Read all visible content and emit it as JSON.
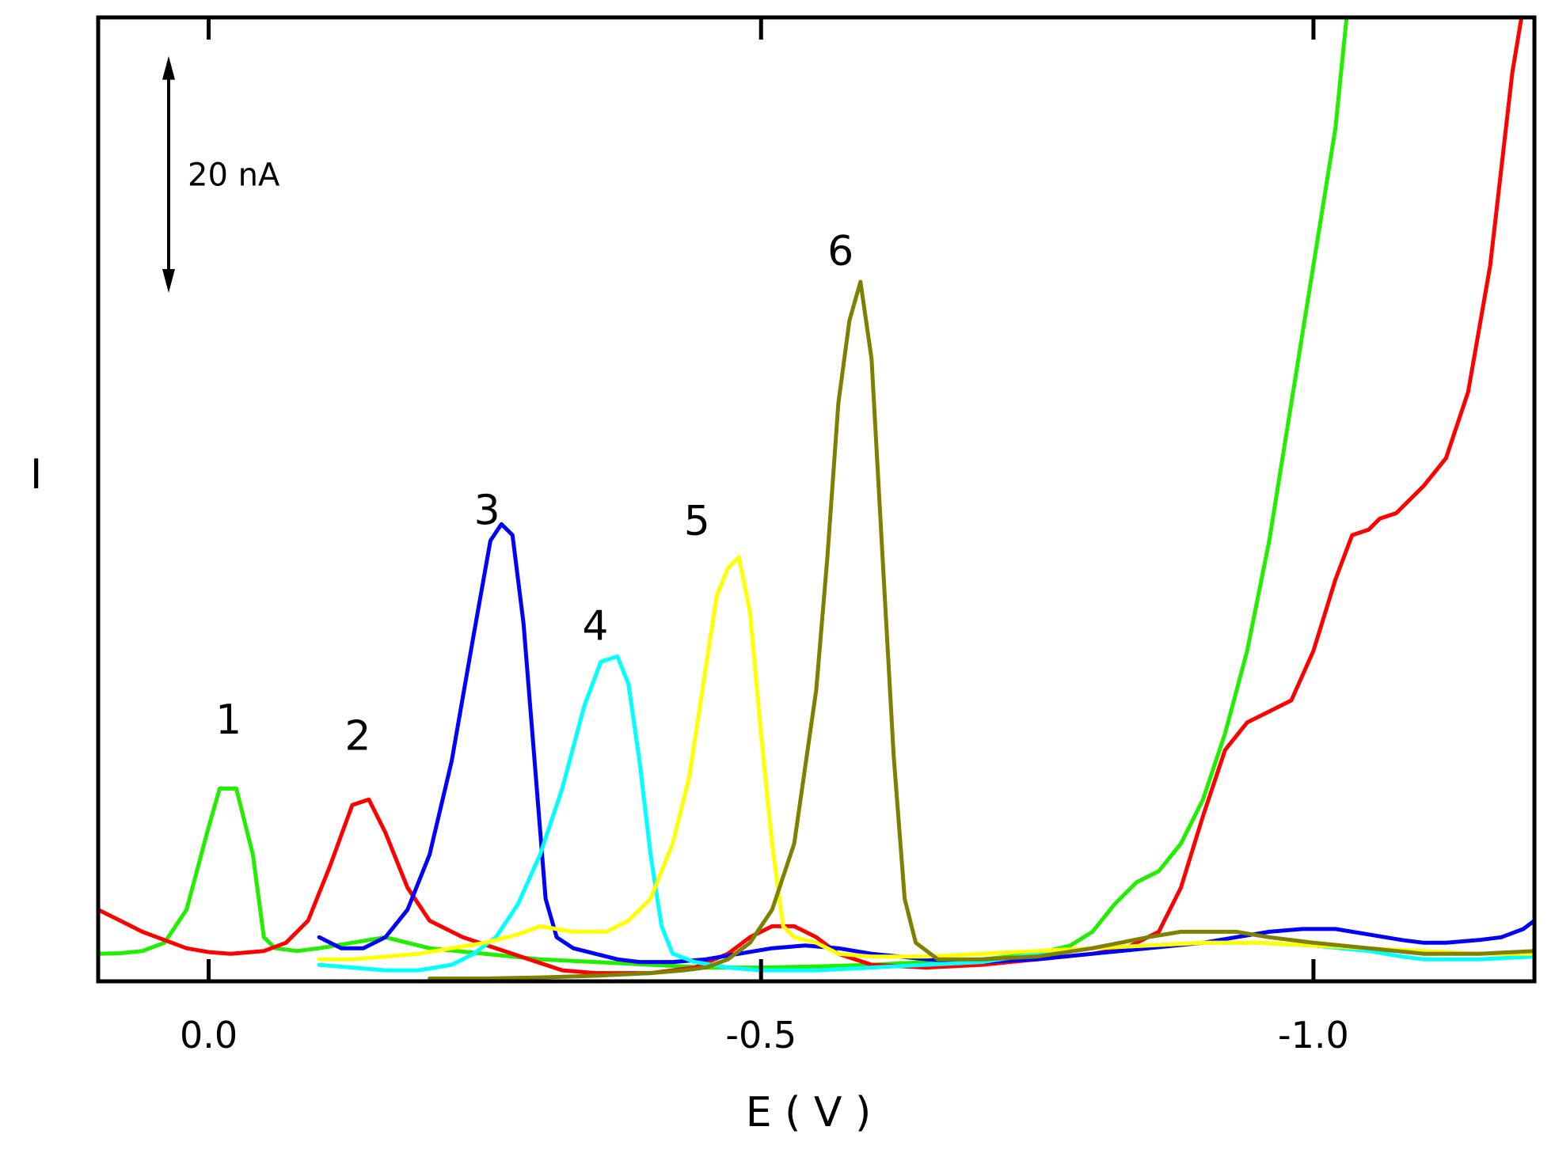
{
  "chart_data": {
    "type": "line",
    "title": "",
    "xlabel": "E ( V )",
    "ylabel": "I",
    "xlim": [
      0.1,
      -1.2
    ],
    "ylim": [
      -5,
      170
    ],
    "x_ticks": [
      {
        "value": 0.0,
        "label": "0.0"
      },
      {
        "value": -0.5,
        "label": "-0.5"
      },
      {
        "value": -1.0,
        "label": "-1.0"
      }
    ],
    "scale_bar": {
      "label": "20 nA",
      "from": 120,
      "to": 163
    },
    "peak_labels": [
      {
        "label": "1",
        "x": -0.018,
        "y": 40
      },
      {
        "label": "2",
        "x": -0.135,
        "y": 37
      },
      {
        "label": "3",
        "x": -0.252,
        "y": 78
      },
      {
        "label": "4",
        "x": -0.35,
        "y": 57
      },
      {
        "label": "5",
        "x": -0.442,
        "y": 76
      },
      {
        "label": "6",
        "x": -0.572,
        "y": 125
      }
    ],
    "series": [
      {
        "name": "1",
        "color": "#22ee00",
        "points": [
          [
            0.1,
            0
          ],
          [
            0.08,
            0.1
          ],
          [
            0.06,
            0.5
          ],
          [
            0.04,
            2
          ],
          [
            0.02,
            8
          ],
          [
            0.0,
            23
          ],
          [
            -0.01,
            30
          ],
          [
            -0.025,
            30
          ],
          [
            -0.04,
            18
          ],
          [
            -0.05,
            3
          ],
          [
            -0.06,
            1
          ],
          [
            -0.08,
            0.5
          ],
          [
            -0.1,
            1
          ],
          [
            -0.13,
            2
          ],
          [
            -0.16,
            3
          ],
          [
            -0.18,
            2
          ],
          [
            -0.2,
            1
          ],
          [
            -0.25,
            0
          ],
          [
            -0.3,
            -1
          ],
          [
            -0.35,
            -1.5
          ],
          [
            -0.4,
            -2
          ],
          [
            -0.45,
            -2.5
          ],
          [
            -0.5,
            -2.5
          ],
          [
            -0.55,
            -2.3
          ],
          [
            -0.6,
            -2
          ],
          [
            -0.65,
            -1.5
          ],
          [
            -0.7,
            -1
          ],
          [
            -0.75,
            0
          ],
          [
            -0.78,
            1.5
          ],
          [
            -0.8,
            4
          ],
          [
            -0.82,
            9
          ],
          [
            -0.84,
            13
          ],
          [
            -0.86,
            15
          ],
          [
            -0.88,
            20
          ],
          [
            -0.9,
            28
          ],
          [
            -0.92,
            40
          ],
          [
            -0.94,
            55
          ],
          [
            -0.96,
            75
          ],
          [
            -0.98,
            100
          ],
          [
            -1.0,
            125
          ],
          [
            -1.02,
            150
          ],
          [
            -1.03,
            170
          ]
        ]
      },
      {
        "name": "2",
        "color": "#ff0000",
        "points": [
          [
            0.1,
            8
          ],
          [
            0.08,
            6
          ],
          [
            0.06,
            4
          ],
          [
            0.04,
            2.5
          ],
          [
            0.02,
            1
          ],
          [
            0.0,
            0.3
          ],
          [
            -0.02,
            0
          ],
          [
            -0.05,
            0.5
          ],
          [
            -0.07,
            2
          ],
          [
            -0.09,
            6
          ],
          [
            -0.11,
            16
          ],
          [
            -0.13,
            27
          ],
          [
            -0.145,
            28
          ],
          [
            -0.16,
            22
          ],
          [
            -0.18,
            12
          ],
          [
            -0.2,
            6
          ],
          [
            -0.23,
            3
          ],
          [
            -0.26,
            1
          ],
          [
            -0.29,
            -1
          ],
          [
            -0.32,
            -3
          ],
          [
            -0.35,
            -3.5
          ],
          [
            -0.4,
            -3.5
          ],
          [
            -0.44,
            -2.5
          ],
          [
            -0.47,
            0
          ],
          [
            -0.49,
            3
          ],
          [
            -0.51,
            5
          ],
          [
            -0.53,
            5
          ],
          [
            -0.55,
            3
          ],
          [
            -0.57,
            0
          ],
          [
            -0.6,
            -2
          ],
          [
            -0.65,
            -2.5
          ],
          [
            -0.7,
            -2
          ],
          [
            -0.75,
            -1
          ],
          [
            -0.8,
            0
          ],
          [
            -0.83,
            1
          ],
          [
            -0.86,
            4
          ],
          [
            -0.88,
            12
          ],
          [
            -0.9,
            25
          ],
          [
            -0.92,
            37
          ],
          [
            -0.94,
            42
          ],
          [
            -0.96,
            44
          ],
          [
            -0.98,
            46
          ],
          [
            -1.0,
            55
          ],
          [
            -1.02,
            68
          ],
          [
            -1.035,
            76
          ],
          [
            -1.05,
            77
          ],
          [
            -1.06,
            79
          ],
          [
            -1.075,
            80
          ],
          [
            -1.085,
            82
          ],
          [
            -1.1,
            85
          ],
          [
            -1.12,
            90
          ],
          [
            -1.14,
            102
          ],
          [
            -1.16,
            125
          ],
          [
            -1.18,
            160
          ],
          [
            -1.19,
            172
          ]
        ]
      },
      {
        "name": "3",
        "color": "#0000ff",
        "points": [
          [
            -0.1,
            3
          ],
          [
            -0.12,
            1
          ],
          [
            -0.14,
            1
          ],
          [
            -0.16,
            3
          ],
          [
            -0.18,
            8
          ],
          [
            -0.2,
            18
          ],
          [
            -0.22,
            35
          ],
          [
            -0.24,
            58
          ],
          [
            -0.255,
            75
          ],
          [
            -0.265,
            78
          ],
          [
            -0.275,
            76
          ],
          [
            -0.285,
            60
          ],
          [
            -0.295,
            35
          ],
          [
            -0.305,
            10
          ],
          [
            -0.315,
            3
          ],
          [
            -0.33,
            1
          ],
          [
            -0.35,
            0
          ],
          [
            -0.37,
            -1
          ],
          [
            -0.39,
            -1.5
          ],
          [
            -0.42,
            -1.5
          ],
          [
            -0.45,
            -1
          ],
          [
            -0.48,
            0
          ],
          [
            -0.51,
            1
          ],
          [
            -0.54,
            1.5
          ],
          [
            -0.57,
            1
          ],
          [
            -0.6,
            0
          ],
          [
            -0.65,
            -1
          ],
          [
            -0.7,
            -1.5
          ],
          [
            -0.75,
            -1
          ],
          [
            -0.8,
            0
          ],
          [
            -0.85,
            1
          ],
          [
            -0.9,
            2
          ],
          [
            -0.93,
            3
          ],
          [
            -0.96,
            4
          ],
          [
            -0.99,
            4.5
          ],
          [
            -1.02,
            4.5
          ],
          [
            -1.05,
            3.5
          ],
          [
            -1.08,
            2.5
          ],
          [
            -1.1,
            2
          ],
          [
            -1.12,
            2
          ],
          [
            -1.15,
            2.5
          ],
          [
            -1.17,
            3
          ],
          [
            -1.19,
            4.5
          ],
          [
            -1.2,
            6
          ]
        ]
      },
      {
        "name": "4",
        "color": "#00ffff",
        "points": [
          [
            -0.1,
            -2
          ],
          [
            -0.13,
            -2.5
          ],
          [
            -0.16,
            -3
          ],
          [
            -0.19,
            -3
          ],
          [
            -0.22,
            -2
          ],
          [
            -0.24,
            0
          ],
          [
            -0.26,
            3
          ],
          [
            -0.28,
            9
          ],
          [
            -0.3,
            18
          ],
          [
            -0.32,
            30
          ],
          [
            -0.34,
            45
          ],
          [
            -0.355,
            53
          ],
          [
            -0.37,
            54
          ],
          [
            -0.38,
            49
          ],
          [
            -0.39,
            35
          ],
          [
            -0.4,
            18
          ],
          [
            -0.41,
            5
          ],
          [
            -0.42,
            0
          ],
          [
            -0.44,
            -1.5
          ],
          [
            -0.47,
            -2.5
          ],
          [
            -0.5,
            -3
          ],
          [
            -0.55,
            -3
          ],
          [
            -0.6,
            -2.5
          ],
          [
            -0.65,
            -2
          ],
          [
            -0.7,
            -1.5
          ],
          [
            -0.75,
            0
          ],
          [
            -0.8,
            1
          ],
          [
            -0.85,
            1.5
          ],
          [
            -0.9,
            2
          ],
          [
            -0.95,
            2
          ],
          [
            -1.0,
            1.5
          ],
          [
            -1.05,
            0.5
          ],
          [
            -1.08,
            -0.5
          ],
          [
            -1.1,
            -1
          ],
          [
            -1.15,
            -1
          ],
          [
            -1.2,
            -0.5
          ]
        ]
      },
      {
        "name": "5",
        "color": "#ffff00",
        "points": [
          [
            -0.1,
            -1
          ],
          [
            -0.13,
            -1
          ],
          [
            -0.16,
            -0.5
          ],
          [
            -0.19,
            0
          ],
          [
            -0.22,
            1
          ],
          [
            -0.25,
            2
          ],
          [
            -0.28,
            3.5
          ],
          [
            -0.3,
            5
          ],
          [
            -0.33,
            4
          ],
          [
            -0.36,
            4
          ],
          [
            -0.38,
            6
          ],
          [
            -0.4,
            10
          ],
          [
            -0.42,
            20
          ],
          [
            -0.435,
            32
          ],
          [
            -0.45,
            52
          ],
          [
            -0.46,
            65
          ],
          [
            -0.47,
            70
          ],
          [
            -0.48,
            72
          ],
          [
            -0.49,
            62
          ],
          [
            -0.5,
            40
          ],
          [
            -0.51,
            20
          ],
          [
            -0.52,
            5
          ],
          [
            -0.53,
            3
          ],
          [
            -0.55,
            2
          ],
          [
            -0.57,
            0
          ],
          [
            -0.6,
            -0.5
          ],
          [
            -0.65,
            -0.5
          ],
          [
            -0.7,
            0
          ],
          [
            -0.75,
            0.5
          ],
          [
            -0.8,
            1
          ],
          [
            -0.85,
            1.5
          ],
          [
            -0.9,
            2
          ],
          [
            -0.95,
            2
          ],
          [
            -1.0,
            1.5
          ],
          [
            -1.05,
            1
          ],
          [
            -1.1,
            0.5
          ],
          [
            -1.15,
            0
          ],
          [
            -1.2,
            0
          ]
        ]
      },
      {
        "name": "6",
        "color": "#808000",
        "points": [
          [
            -0.2,
            -4.5
          ],
          [
            -0.25,
            -4.5
          ],
          [
            -0.3,
            -4.3
          ],
          [
            -0.35,
            -4
          ],
          [
            -0.4,
            -3.5
          ],
          [
            -0.43,
            -3
          ],
          [
            -0.45,
            -2.5
          ],
          [
            -0.47,
            -1
          ],
          [
            -0.49,
            2
          ],
          [
            -0.51,
            8
          ],
          [
            -0.53,
            20
          ],
          [
            -0.55,
            48
          ],
          [
            -0.56,
            72
          ],
          [
            -0.57,
            100
          ],
          [
            -0.58,
            115
          ],
          [
            -0.59,
            122
          ],
          [
            -0.6,
            108
          ],
          [
            -0.61,
            72
          ],
          [
            -0.62,
            36
          ],
          [
            -0.63,
            10
          ],
          [
            -0.64,
            2
          ],
          [
            -0.66,
            -1
          ],
          [
            -0.7,
            -1
          ],
          [
            -0.75,
            -0.5
          ],
          [
            -0.8,
            1
          ],
          [
            -0.85,
            3
          ],
          [
            -0.88,
            4
          ],
          [
            -0.9,
            4
          ],
          [
            -0.93,
            4
          ],
          [
            -0.96,
            3
          ],
          [
            -1.0,
            2
          ],
          [
            -1.05,
            1
          ],
          [
            -1.1,
            0
          ],
          [
            -1.15,
            0
          ],
          [
            -1.2,
            0.5
          ]
        ]
      }
    ]
  }
}
